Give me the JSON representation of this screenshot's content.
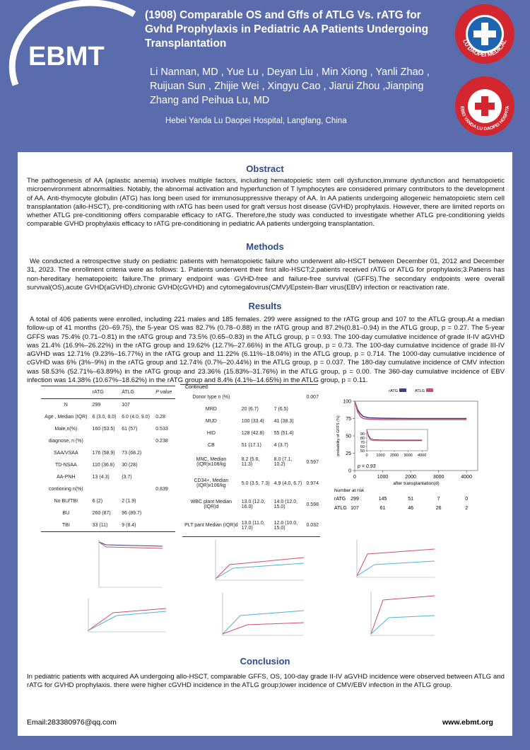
{
  "header": {
    "logo": "EBMT",
    "title": "(1908) Comparable OS and Gffs of ATLG Vs. rATG for Gvhd Prophylaxis in Pediatric AA Patients Undergoing Transplantation",
    "authors": "Li Nannan, MD , Yue Lu , Deyan Liu , Min Xiong , Yanli Zhao , Ruijuan Sun , Zhijie Wei , Xingyu Cao , Jiarui Zhou ,Jianping Zhang and Peihua Lu, MD",
    "affiliation": "Hebei Yanda Lu Daopei Hospital, Langfang, China",
    "badge1": "LU DAOPEI MEDICAL",
    "badge2": "HEBEI YANDA LU DAOPEI HOSPITAL"
  },
  "abstract": {
    "heading": "Obstract",
    "text": "The pathogenesis of AA (aplastic anemia) involves multiple factors, including hematopoietic stem cell dysfunction,immune dysfunction and hematopoietic microenvironment abnormalities. Notably, the abnormal activation and hyperfunction of T lymphocytes are considered primary contributors to the development of AA. Anti-thymocyte globulin (ATG) has long been used for immunosuppressive therapy of AA. In AA patients undergoing allogeneic hematopoietic stem cell transplantation (allo-HSCT), pre-conditioning with rATG has been used for graft versus host disease (GVHD) prophylaxis. However, there are limited reports on whether ATLG pre-conditioning offers comparable  efficacy to rATG. Therefore,the study was conducted to investigate whether ATLG pre-conditioning yields comparable GVHD prophylaxis efficacy to rATG pre-conditioning in pediatric AA patients undergoing transplantation."
  },
  "methods": {
    "heading": "Methods",
    "text": "We conducted a retrospective study on pediatric patients with hematopoietic failure who underwent allo-HSCT between December 01, 2012 and December 31, 2023. The enrollment criteria were as follows: 1. Patients underwent their  first allo-HSCT;2.patients received rATG or ATLG for prophylaxis;3.Patiens has non-hereditary hematopoieitc failure.The primary endpoint was GVHD-free and failure-free survival (GFFS).The secondary endpoints were overall survival(OS),acute GVHD(aGVHD),chronic GVHD(cGVHD) and cytomegalovirus(CMV)/Epstein-Barr virus(EBV) infection or reactivation rate."
  },
  "results": {
    "heading": "Results",
    "text": "A total of 406 patients were enrolled, including 221 males and 185 females. 299 were assigned to the rATG group and 107 to the ATLG group.At a median follow-up of 41 months (20–69.75), the 5-year OS was 82.7% (0.78–0.88) in the rATG group and 87.2%(0.81–0.94) in the ATLG group, p = 0.27. The 5-year GFFS was 75.4% (0.71–0.81) in the rATG group and 73.5% (0.65–0.83) in the ATLG group, p = 0.93. The 100-day cumulative incidence of grade II-IV aGVHD was 21.4% (16.9%–26.22%) in the rATG group and 19.62% (12.7%–27.66%) in the ATLG group, p = 0.73. The 100-day cumulative incidence of grade III-IV aGVHD was 12.71% (9.23%–16.77%) in the rATG group and 11.22% (6.11%–18.04%) in the ATLG group, p = 0.714. The 1000-day cumulative incidence of cGVHD was 6% (3%–9%) in the rATG group and 12.74% (0.7%–20.44%) in the ATLG group, p = 0.037. The 180-day cumulative incidence of CMV infection was 58.53% (52.71%–63.89%) in the rATG group and 23.36% (15.83%–31.76%) in the ATLG group, p = 0.00. The 360-day cumulative incidence of EBV infection was 14.38% (10.67%–18.62%) in the rATG group and 8.4% (4.1%–14.65%) in the ATLG group, p = 0.11."
  },
  "table1": {
    "header": [
      null,
      "rATG",
      "ATLG",
      "P value"
    ],
    "rows": [
      [
        "N",
        "299",
        "107",
        null
      ],
      [
        "Age , Median (IQR)",
        "6 (3.0, 8.0)",
        "6.0 (4.0, 9.0)",
        "0.28"
      ],
      [
        "Male,n(%)",
        "160 (53.5)",
        "61 (57)",
        "0.533"
      ],
      [
        "diagnose, n (%)",
        null,
        null,
        "0.238"
      ],
      [
        "SAA/VSAA",
        "176 (58.9)",
        "73 (68.2)",
        null
      ],
      [
        "TD-NSAA",
        "110 (36.8)",
        "30 (28)",
        null
      ],
      [
        "AA-PNH",
        "13 (4.3)",
        "(3.7)",
        null
      ],
      [
        "contioning n(%)",
        null,
        null,
        "0.839"
      ],
      [
        "No BU/TBI",
        "6 (2)",
        "2 (1.9)",
        null
      ],
      [
        "BU",
        "260 (87)",
        "96 (89.7)",
        null
      ],
      [
        "TBI",
        "33 (11)",
        "9 (8.4)",
        null
      ]
    ]
  },
  "table2": {
    "caption": "Continued",
    "rows": [
      [
        "Donor type n (%)",
        null,
        null,
        "0.007"
      ],
      [
        "MRD",
        "20 (6.7)",
        "7 (6.5)",
        null
      ],
      [
        "MUD",
        "100 (33.4)",
        "41 (38.3)",
        null
      ],
      [
        "HID",
        "128 (42.8)",
        "55 (51.4)",
        null
      ],
      [
        "CB",
        "51 (17.1)",
        "4 (3.7)",
        null
      ],
      [
        "MNC, Median (IQR)x108/kg",
        "8.2 (5.6, 11.3)",
        "8.0 (7.1, 10.2)",
        "0.597"
      ],
      [
        "CD34+, Median (IQR)x106/kg",
        "5.0 (3.5, 7.3)",
        "4.9 (4.0, 6.7)",
        "0.974"
      ],
      [
        "WBC plant Median (IQR)d",
        "13.0 (12.0, 16.0)",
        "14.0 (12.0, 15.0)",
        "0.598"
      ],
      [
        "PLT pant Median (IQR)d",
        "13.0 (11.0, 17.0)",
        "12.0 (10.0, 15.0)",
        "0.032"
      ]
    ]
  },
  "chart_data": {
    "type": "line",
    "ylabel": "probability of GFFS (%)",
    "xlabel": "after transplantation(d)",
    "annotation": "p = 0.93",
    "x": [
      0,
      100,
      200,
      300,
      500,
      1000,
      2000,
      3000,
      4000
    ],
    "series": [
      {
        "name": "rATG",
        "color": "#3d3f8c",
        "values": [
          100,
          88,
          82,
          78,
          76,
          75.4,
          75,
          75,
          75
        ]
      },
      {
        "name": "ATLG",
        "color": "#cf4f6c",
        "values": [
          100,
          85,
          78,
          75,
          74,
          73.5,
          73.5,
          73.5,
          73.5
        ]
      }
    ],
    "xlim": [
      0,
      4400
    ],
    "ylim": [
      0,
      100
    ],
    "xticks": [
      0,
      1000,
      2000,
      3000,
      4000
    ],
    "yticks": [
      0,
      25,
      50,
      75,
      100
    ],
    "inset": {
      "ylim": [
        50,
        100
      ],
      "yticks": [
        50,
        60,
        70,
        80,
        90
      ],
      "xticks": [
        0,
        1000,
        2000,
        3000,
        4000
      ]
    },
    "risk_table": {
      "title": "Number at risk",
      "rows": [
        {
          "name": "rATG",
          "values": [
            299,
            145,
            51,
            7,
            0
          ]
        },
        {
          "name": "ATLG",
          "values": [
            107,
            61,
            46,
            26,
            2
          ]
        }
      ]
    }
  },
  "conclusion": {
    "heading": "Conclusion",
    "text": "In pediatric patients with acquired AA undergoing allo-HSCT, comparable GFFS, OS, 100-day grade II-IV aGVHD incidence were observed between ATLG and rATG for GVHD prophylaxis. there were higher cGVHD incidence in the ATLG group;lower incidence of CMV/EBV infection in the ATLG group."
  },
  "footer": {
    "email": "Email:283380976@qq.com",
    "site": "www.ebmt.org"
  }
}
